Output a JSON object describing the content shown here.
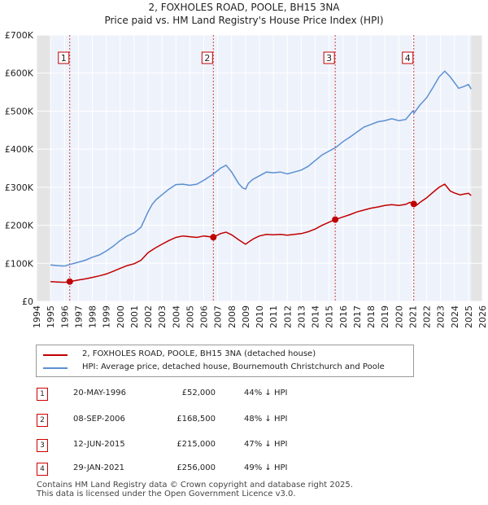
{
  "title_line1": "2, FOXHOLES ROAD, POOLE, BH15 3NA",
  "title_line2": "Price paid vs. HM Land Registry's House Price Index (HPI)",
  "chart_data": {
    "type": "line",
    "xlim": [
      1994,
      2026
    ],
    "ylim": [
      0,
      700000
    ],
    "y_ticks": [
      {
        "value": 0,
        "label": "£0"
      },
      {
        "value": 100000,
        "label": "£100K"
      },
      {
        "value": 200000,
        "label": "£200K"
      },
      {
        "value": 300000,
        "label": "£300K"
      },
      {
        "value": 400000,
        "label": "£400K"
      },
      {
        "value": 500000,
        "label": "£500K"
      },
      {
        "value": 600000,
        "label": "£600K"
      },
      {
        "value": 700000,
        "label": "£700K"
      }
    ],
    "x_ticks": [
      1994,
      1995,
      1996,
      1997,
      1998,
      1999,
      2000,
      2001,
      2002,
      2003,
      2004,
      2005,
      2006,
      2007,
      2008,
      2009,
      2010,
      2011,
      2012,
      2013,
      2014,
      2015,
      2016,
      2017,
      2018,
      2019,
      2020,
      2021,
      2022,
      2023,
      2024,
      2025,
      2026
    ],
    "series": [
      {
        "name": "HPI: Average price, detached house, Bournemouth Christchurch and Poole",
        "color": "#5b8fd0",
        "x": [
          1995.0,
          1995.5,
          1996.0,
          1996.4,
          1997.0,
          1997.5,
          1998.0,
          1998.5,
          1999.0,
          1999.5,
          2000.0,
          2000.5,
          2001.0,
          2001.5,
          2002.0,
          2002.3,
          2002.6,
          2003.0,
          2003.5,
          2004.0,
          2004.5,
          2005.0,
          2005.5,
          2006.0,
          2006.7,
          2007.2,
          2007.6,
          2008.0,
          2008.5,
          2008.8,
          2009.0,
          2009.2,
          2009.5,
          2010.0,
          2010.5,
          2011.0,
          2011.5,
          2012.0,
          2012.5,
          2013.0,
          2013.5,
          2014.0,
          2014.5,
          2015.0,
          2015.5,
          2016.0,
          2016.5,
          2017.0,
          2017.5,
          2018.0,
          2018.5,
          2019.0,
          2019.5,
          2020.0,
          2020.5,
          2021.0,
          2021.1,
          2021.5,
          2022.0,
          2022.5,
          2022.9,
          2023.3,
          2023.7,
          2024.0,
          2024.3,
          2024.7,
          2025.0,
          2025.2
        ],
        "values": [
          96000,
          94000,
          93000,
          97000,
          103000,
          108000,
          116000,
          122000,
          132000,
          145000,
          160000,
          172000,
          180000,
          195000,
          235000,
          255000,
          268000,
          280000,
          295000,
          307000,
          308000,
          305000,
          308000,
          318000,
          335000,
          350000,
          358000,
          340000,
          310000,
          298000,
          295000,
          310000,
          320000,
          330000,
          340000,
          338000,
          340000,
          335000,
          340000,
          345000,
          355000,
          370000,
          385000,
          395000,
          405000,
          420000,
          432000,
          445000,
          458000,
          465000,
          472000,
          475000,
          480000,
          475000,
          478000,
          500000,
          495000,
          515000,
          535000,
          565000,
          590000,
          605000,
          590000,
          575000,
          560000,
          565000,
          570000,
          558000
        ]
      },
      {
        "name": "2, FOXHOLES ROAD, POOLE, BH15 3NA (detached house)",
        "color": "#c00000",
        "x": [
          1995.0,
          1995.5,
          1996.0,
          1996.38,
          1997.0,
          1997.5,
          1998.0,
          1998.5,
          1999.0,
          1999.5,
          2000.0,
          2000.5,
          2001.0,
          2001.5,
          2002.0,
          2002.5,
          2003.0,
          2003.5,
          2004.0,
          2004.5,
          2005.0,
          2005.5,
          2006.0,
          2006.69,
          2007.2,
          2007.6,
          2008.0,
          2008.5,
          2008.8,
          2009.0,
          2009.3,
          2009.6,
          2010.0,
          2010.5,
          2011.0,
          2011.5,
          2012.0,
          2012.5,
          2013.0,
          2013.5,
          2014.0,
          2014.5,
          2015.0,
          2015.44,
          2016.0,
          2016.5,
          2017.0,
          2017.5,
          2018.0,
          2018.5,
          2019.0,
          2019.5,
          2020.0,
          2020.5,
          2020.8,
          2021.08,
          2021.3,
          2021.6,
          2022.0,
          2022.5,
          2022.9,
          2023.3,
          2023.7,
          2024.0,
          2024.4,
          2024.7,
          2025.0,
          2025.2
        ],
        "values": [
          52000,
          51000,
          50000,
          52000,
          56000,
          59000,
          63000,
          67000,
          72000,
          79000,
          87000,
          94000,
          99000,
          108000,
          128000,
          140000,
          150000,
          160000,
          168000,
          172000,
          170000,
          168000,
          172000,
          168500,
          178000,
          182000,
          175000,
          162000,
          155000,
          150000,
          158000,
          165000,
          172000,
          176000,
          175000,
          176000,
          174000,
          176000,
          178000,
          183000,
          190000,
          200000,
          208000,
          215000,
          222000,
          228000,
          235000,
          240000,
          245000,
          248000,
          252000,
          254000,
          252000,
          255000,
          260000,
          256000,
          253000,
          262000,
          272000,
          288000,
          300000,
          308000,
          290000,
          285000,
          280000,
          282000,
          284000,
          278000
        ]
      }
    ],
    "sales": [
      {
        "label": "1",
        "x": 1996.38,
        "price": 52000
      },
      {
        "label": "2",
        "x": 2006.69,
        "price": 168500
      },
      {
        "label": "3",
        "x": 2015.44,
        "price": 215000
      },
      {
        "label": "4",
        "x": 2021.08,
        "price": 256000
      }
    ]
  },
  "legend": {
    "property_label": "2, FOXHOLES ROAD, POOLE, BH15 3NA (detached house)",
    "hpi_label": "HPI: Average price, detached house, Bournemouth Christchurch and Poole"
  },
  "transactions": [
    {
      "num": "1",
      "date": "20-MAY-1996",
      "price": "£52,000",
      "hpi": "44% ↓ HPI"
    },
    {
      "num": "2",
      "date": "08-SEP-2006",
      "price": "£168,500",
      "hpi": "48% ↓ HPI"
    },
    {
      "num": "3",
      "date": "12-JUN-2015",
      "price": "£215,000",
      "hpi": "47% ↓ HPI"
    },
    {
      "num": "4",
      "date": "29-JAN-2021",
      "price": "£256,000",
      "hpi": "49% ↓ HPI"
    }
  ],
  "footer": {
    "line1": "Contains HM Land Registry data © Crown copyright and database right 2025.",
    "line2": "This data is licensed under the Open Government Licence v3.0."
  }
}
